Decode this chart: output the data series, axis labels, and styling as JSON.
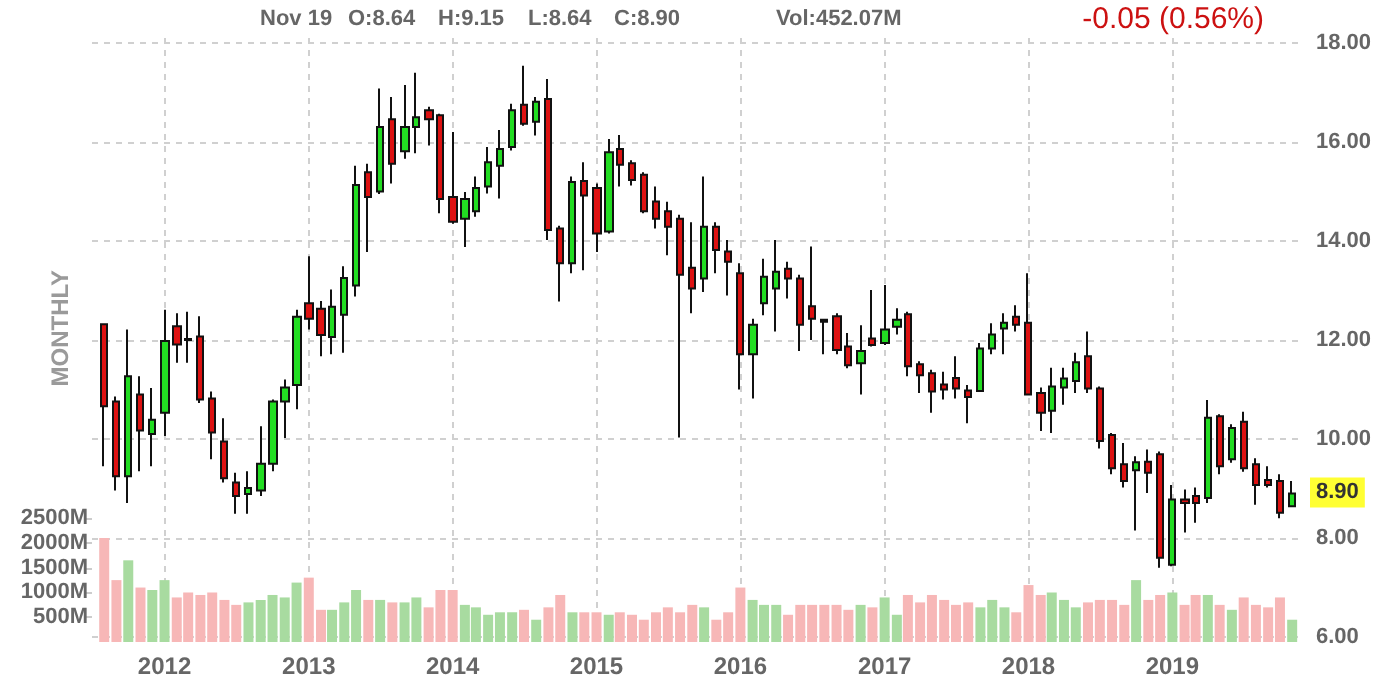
{
  "chart_data": {
    "type": "candlestick",
    "x": [
      "2011-08",
      "2011-09",
      "2011-10",
      "2011-11",
      "2011-12",
      "2012-01",
      "2012-02",
      "2012-03",
      "2012-04",
      "2012-05",
      "2012-06",
      "2012-07",
      "2012-08",
      "2012-09",
      "2012-10",
      "2012-11",
      "2012-12",
      "2013-01",
      "2013-02",
      "2013-03",
      "2013-04",
      "2013-05",
      "2013-06",
      "2013-07",
      "2013-08",
      "2013-09",
      "2013-10",
      "2013-11",
      "2013-12",
      "2014-01",
      "2014-02",
      "2014-03",
      "2014-04",
      "2014-05",
      "2014-06",
      "2014-07",
      "2014-08",
      "2014-09",
      "2014-10",
      "2014-11",
      "2014-12",
      "2015-01",
      "2015-02",
      "2015-03",
      "2015-04",
      "2015-05",
      "2015-06",
      "2015-07",
      "2015-08",
      "2015-09",
      "2015-10",
      "2015-11",
      "2015-12",
      "2016-01",
      "2016-02",
      "2016-03",
      "2016-04",
      "2016-05",
      "2016-06",
      "2016-07",
      "2016-08",
      "2016-09",
      "2016-10",
      "2016-11",
      "2016-12",
      "2017-01",
      "2017-02",
      "2017-03",
      "2017-04",
      "2017-05",
      "2017-06",
      "2017-07",
      "2017-08",
      "2017-09",
      "2017-10",
      "2017-11",
      "2017-12",
      "2018-01",
      "2018-02",
      "2018-03",
      "2018-04",
      "2018-05",
      "2018-06",
      "2018-07",
      "2018-08",
      "2018-09",
      "2018-10",
      "2018-11",
      "2018-12",
      "2019-01",
      "2019-02",
      "2019-03",
      "2019-04",
      "2019-05",
      "2019-06",
      "2019-07",
      "2019-08",
      "2019-09",
      "2019-10",
      "2019-11"
    ],
    "ohlc": [
      [
        12.32,
        12.34,
        9.45,
        10.66
      ],
      [
        10.76,
        10.86,
        8.96,
        9.25
      ],
      [
        9.25,
        12.21,
        8.71,
        11.27
      ],
      [
        10.9,
        11.27,
        9.35,
        10.17
      ],
      [
        10.1,
        11.03,
        9.45,
        10.39
      ],
      [
        10.53,
        12.61,
        10.06,
        11.98
      ],
      [
        12.28,
        12.54,
        11.54,
        11.91
      ],
      [
        12.02,
        12.57,
        11.54,
        12.0
      ],
      [
        12.07,
        12.48,
        10.73,
        10.8
      ],
      [
        10.82,
        10.96,
        9.59,
        10.13
      ],
      [
        9.95,
        10.42,
        9.12,
        9.21
      ],
      [
        9.12,
        9.32,
        8.49,
        8.85
      ],
      [
        8.89,
        9.35,
        8.49,
        9.01
      ],
      [
        8.96,
        10.26,
        8.85,
        9.5
      ],
      [
        9.5,
        10.8,
        9.35,
        10.76
      ],
      [
        10.76,
        11.2,
        10.02,
        11.04
      ],
      [
        11.09,
        12.61,
        10.6,
        12.47
      ],
      [
        12.74,
        13.69,
        12.21,
        12.43
      ],
      [
        12.63,
        12.79,
        11.67,
        12.1
      ],
      [
        12.06,
        13.02,
        11.71,
        12.67
      ],
      [
        12.51,
        13.49,
        11.74,
        13.25
      ],
      [
        13.1,
        15.52,
        12.88,
        15.13
      ],
      [
        15.39,
        15.56,
        13.78,
        14.89
      ],
      [
        15.0,
        17.08,
        14.95,
        16.3
      ],
      [
        16.46,
        16.91,
        15.16,
        15.56
      ],
      [
        15.81,
        17.15,
        15.66,
        16.3
      ],
      [
        16.3,
        17.4,
        15.77,
        16.5
      ],
      [
        16.64,
        16.71,
        15.93,
        16.46
      ],
      [
        16.54,
        16.57,
        14.56,
        14.85
      ],
      [
        14.89,
        16.2,
        14.35,
        14.39
      ],
      [
        14.45,
        14.99,
        13.88,
        14.85
      ],
      [
        14.6,
        15.3,
        14.49,
        15.07
      ],
      [
        15.1,
        15.9,
        14.96,
        15.59
      ],
      [
        15.52,
        16.24,
        14.86,
        15.86
      ],
      [
        15.9,
        16.77,
        15.83,
        16.64
      ],
      [
        16.75,
        17.54,
        16.33,
        16.37
      ],
      [
        16.41,
        16.91,
        16.13,
        16.81
      ],
      [
        16.87,
        17.27,
        14.02,
        14.22
      ],
      [
        14.25,
        14.31,
        12.78,
        13.55
      ],
      [
        13.55,
        15.3,
        13.35,
        15.19
      ],
      [
        15.21,
        15.59,
        13.41,
        14.92
      ],
      [
        15.07,
        15.16,
        13.78,
        14.15
      ],
      [
        14.19,
        16.06,
        14.15,
        15.79
      ],
      [
        15.86,
        16.14,
        15.1,
        15.54
      ],
      [
        15.57,
        15.63,
        15.12,
        15.23
      ],
      [
        15.34,
        15.39,
        14.56,
        14.6
      ],
      [
        14.8,
        15.1,
        14.25,
        14.45
      ],
      [
        14.6,
        14.79,
        13.71,
        14.29
      ],
      [
        14.45,
        14.53,
        10.03,
        13.32
      ],
      [
        13.46,
        14.38,
        12.54,
        13.04
      ],
      [
        13.24,
        15.3,
        12.97,
        14.29
      ],
      [
        14.29,
        14.38,
        13.35,
        13.82
      ],
      [
        13.79,
        14.02,
        12.9,
        13.58
      ],
      [
        13.35,
        13.55,
        11.0,
        11.71
      ],
      [
        11.71,
        12.43,
        10.82,
        12.31
      ],
      [
        12.74,
        13.64,
        12.5,
        13.28
      ],
      [
        13.04,
        14.02,
        12.17,
        13.38
      ],
      [
        13.44,
        13.58,
        12.84,
        13.24
      ],
      [
        13.24,
        13.32,
        11.78,
        12.31
      ],
      [
        12.68,
        13.89,
        12.0,
        12.43
      ],
      [
        12.41,
        12.43,
        11.71,
        12.37
      ],
      [
        12.48,
        12.54,
        11.71,
        11.8
      ],
      [
        11.87,
        12.14,
        11.43,
        11.49
      ],
      [
        11.53,
        12.3,
        10.9,
        11.78
      ],
      [
        12.03,
        13.01,
        11.87,
        11.9
      ],
      [
        11.94,
        13.11,
        11.9,
        12.21
      ],
      [
        12.27,
        12.64,
        12.11,
        12.41
      ],
      [
        12.52,
        12.57,
        11.27,
        11.47
      ],
      [
        11.51,
        11.57,
        10.93,
        11.29
      ],
      [
        11.33,
        11.4,
        10.53,
        10.96
      ],
      [
        11.1,
        11.36,
        10.8,
        11.0
      ],
      [
        11.23,
        11.67,
        10.82,
        11.02
      ],
      [
        10.98,
        11.09,
        10.32,
        10.85
      ],
      [
        10.97,
        11.94,
        10.96,
        11.83
      ],
      [
        11.83,
        12.34,
        11.71,
        12.11
      ],
      [
        12.23,
        12.54,
        11.71,
        12.35
      ],
      [
        12.47,
        12.7,
        12.17,
        12.31
      ],
      [
        12.35,
        13.35,
        10.88,
        10.9
      ],
      [
        10.93,
        11.04,
        10.16,
        10.53
      ],
      [
        10.57,
        11.44,
        10.12,
        11.06
      ],
      [
        11.04,
        11.44,
        10.69,
        11.22
      ],
      [
        11.17,
        11.74,
        10.93,
        11.55
      ],
      [
        11.67,
        12.17,
        10.93,
        11.02
      ],
      [
        11.02,
        11.06,
        9.81,
        9.96
      ],
      [
        10.08,
        10.12,
        9.29,
        9.41
      ],
      [
        9.49,
        9.92,
        9.02,
        9.15
      ],
      [
        9.37,
        9.65,
        8.15,
        9.53
      ],
      [
        9.54,
        9.79,
        8.91,
        9.32
      ],
      [
        9.69,
        9.75,
        7.4,
        7.6
      ],
      [
        7.46,
        9.07,
        7.43,
        8.78
      ],
      [
        8.78,
        8.98,
        8.11,
        8.71
      ],
      [
        8.85,
        9.02,
        8.31,
        8.71
      ],
      [
        8.81,
        10.79,
        8.71,
        10.43
      ],
      [
        10.46,
        10.5,
        9.29,
        9.45
      ],
      [
        9.59,
        10.3,
        9.52,
        10.22
      ],
      [
        10.35,
        10.55,
        9.34,
        9.41
      ],
      [
        9.49,
        9.61,
        8.67,
        9.07
      ],
      [
        9.17,
        9.45,
        9.02,
        9.07
      ],
      [
        9.15,
        9.29,
        8.4,
        8.51
      ],
      [
        8.64,
        9.15,
        8.64,
        8.9
      ]
    ],
    "colors": [
      "#dd1111",
      "#dd1111",
      "#22dd22",
      "#dd1111",
      "#22dd22",
      "#22dd22",
      "#dd1111",
      "#dd1111",
      "#dd1111",
      "#dd1111",
      "#dd1111",
      "#dd1111",
      "#22dd22",
      "#22dd22",
      "#22dd22",
      "#22dd22",
      "#22dd22",
      "#dd1111",
      "#dd1111",
      "#22dd22",
      "#22dd22",
      "#22dd22",
      "#dd1111",
      "#22dd22",
      "#dd1111",
      "#22dd22",
      "#22dd22",
      "#dd1111",
      "#dd1111",
      "#dd1111",
      "#22dd22",
      "#22dd22",
      "#22dd22",
      "#22dd22",
      "#22dd22",
      "#dd1111",
      "#22dd22",
      "#dd1111",
      "#dd1111",
      "#22dd22",
      "#dd1111",
      "#dd1111",
      "#22dd22",
      "#dd1111",
      "#dd1111",
      "#dd1111",
      "#dd1111",
      "#dd1111",
      "#dd1111",
      "#dd1111",
      "#22dd22",
      "#dd1111",
      "#dd1111",
      "#dd1111",
      "#22dd22",
      "#22dd22",
      "#22dd22",
      "#dd1111",
      "#dd1111",
      "#dd1111",
      "#dd1111",
      "#dd1111",
      "#dd1111",
      "#22dd22",
      "#dd1111",
      "#22dd22",
      "#22dd22",
      "#dd1111",
      "#dd1111",
      "#dd1111",
      "#dd1111",
      "#dd1111",
      "#dd1111",
      "#22dd22",
      "#22dd22",
      "#22dd22",
      "#dd1111",
      "#dd1111",
      "#dd1111",
      "#22dd22",
      "#22dd22",
      "#22dd22",
      "#dd1111",
      "#dd1111",
      "#dd1111",
      "#dd1111",
      "#22dd22",
      "#dd1111",
      "#dd1111",
      "#22dd22",
      "#dd1111",
      "#dd1111",
      "#22dd22",
      "#dd1111",
      "#22dd22",
      "#dd1111",
      "#dd1111",
      "#dd1111",
      "#dd1111",
      "#22dd22"
    ],
    "series": [
      {
        "type": "bar",
        "axis": "y2",
        "values": [
          2100,
          1250,
          1650,
          1100,
          1050,
          1250,
          900,
          1000,
          950,
          1000,
          850,
          750,
          800,
          850,
          950,
          900,
          1200,
          1300,
          650,
          650,
          800,
          1050,
          850,
          850,
          800,
          800,
          900,
          700,
          1050,
          1050,
          750,
          700,
          550,
          600,
          600,
          650,
          450,
          700,
          950,
          600,
          600,
          600,
          550,
          600,
          550,
          450,
          600,
          700,
          600,
          750,
          700,
          450,
          600,
          1100,
          850,
          750,
          750,
          550,
          750,
          750,
          750,
          750,
          650,
          750,
          700,
          900,
          550,
          950,
          800,
          950,
          850,
          750,
          800,
          700,
          850,
          700,
          600,
          1150,
          950,
          1000,
          850,
          700,
          800,
          850,
          850,
          750,
          1250,
          850,
          950,
          1000,
          750,
          950,
          950,
          750,
          650,
          900,
          750,
          700,
          900,
          450
        ],
        "colors": [
          "#f7b7b7",
          "#f7b7b7",
          "#a8dba0",
          "#f7b7b7",
          "#a8dba0",
          "#a8dba0",
          "#f7b7b7",
          "#f7b7b7",
          "#f7b7b7",
          "#f7b7b7",
          "#f7b7b7",
          "#f7b7b7",
          "#a8dba0",
          "#a8dba0",
          "#a8dba0",
          "#a8dba0",
          "#a8dba0",
          "#f7b7b7",
          "#f7b7b7",
          "#a8dba0",
          "#a8dba0",
          "#a8dba0",
          "#f7b7b7",
          "#a8dba0",
          "#f7b7b7",
          "#a8dba0",
          "#a8dba0",
          "#f7b7b7",
          "#f7b7b7",
          "#f7b7b7",
          "#a8dba0",
          "#a8dba0",
          "#a8dba0",
          "#a8dba0",
          "#a8dba0",
          "#f7b7b7",
          "#a8dba0",
          "#f7b7b7",
          "#f7b7b7",
          "#a8dba0",
          "#f7b7b7",
          "#f7b7b7",
          "#a8dba0",
          "#f7b7b7",
          "#f7b7b7",
          "#f7b7b7",
          "#f7b7b7",
          "#f7b7b7",
          "#f7b7b7",
          "#f7b7b7",
          "#a8dba0",
          "#f7b7b7",
          "#f7b7b7",
          "#f7b7b7",
          "#a8dba0",
          "#a8dba0",
          "#a8dba0",
          "#f7b7b7",
          "#f7b7b7",
          "#f7b7b7",
          "#f7b7b7",
          "#f7b7b7",
          "#f7b7b7",
          "#a8dba0",
          "#f7b7b7",
          "#a8dba0",
          "#a8dba0",
          "#f7b7b7",
          "#f7b7b7",
          "#f7b7b7",
          "#f7b7b7",
          "#f7b7b7",
          "#f7b7b7",
          "#a8dba0",
          "#a8dba0",
          "#a8dba0",
          "#f7b7b7",
          "#f7b7b7",
          "#f7b7b7",
          "#a8dba0",
          "#a8dba0",
          "#a8dba0",
          "#f7b7b7",
          "#f7b7b7",
          "#f7b7b7",
          "#f7b7b7",
          "#a8dba0",
          "#f7b7b7",
          "#f7b7b7",
          "#a8dba0",
          "#f7b7b7",
          "#f7b7b7",
          "#a8dba0",
          "#f7b7b7",
          "#a8dba0",
          "#f7b7b7",
          "#f7b7b7",
          "#f7b7b7",
          "#f7b7b7",
          "#a8dba0"
        ]
      }
    ],
    "xlim": [
      "2011-07",
      "2019-12"
    ],
    "xticks": [
      "2012",
      "2013",
      "2014",
      "2015",
      "2016",
      "2017",
      "2018",
      "2019"
    ],
    "ylim": [
      5.9,
      18.1
    ],
    "yticks": [
      {
        "value": 6,
        "label": "6.00"
      },
      {
        "value": 8,
        "label": "8.00"
      },
      {
        "value": 10,
        "label": "10.00"
      },
      {
        "value": 12,
        "label": "12.00"
      },
      {
        "value": 14,
        "label": "14.00"
      },
      {
        "value": 16,
        "label": "16.00"
      },
      {
        "value": 18,
        "label": "18.00"
      }
    ],
    "y2lim": [
      0,
      12200
    ],
    "y2ticks": [
      {
        "value": 500,
        "label": "500M"
      },
      {
        "value": 1000,
        "label": "1000M"
      },
      {
        "value": 1500,
        "label": "1500M"
      },
      {
        "value": 2000,
        "label": "2000M"
      },
      {
        "value": 2500,
        "label": "2500M"
      }
    ],
    "grid": true,
    "annotations": [
      "Nov 19",
      "O:8.64",
      "H:9.15",
      "L:8.64",
      "C:8.90",
      "Vol:452.07M",
      "-0.05 (0.56%)",
      "MONTHLY",
      {
        "text": "8.90",
        "y": 8.9
      }
    ]
  }
}
